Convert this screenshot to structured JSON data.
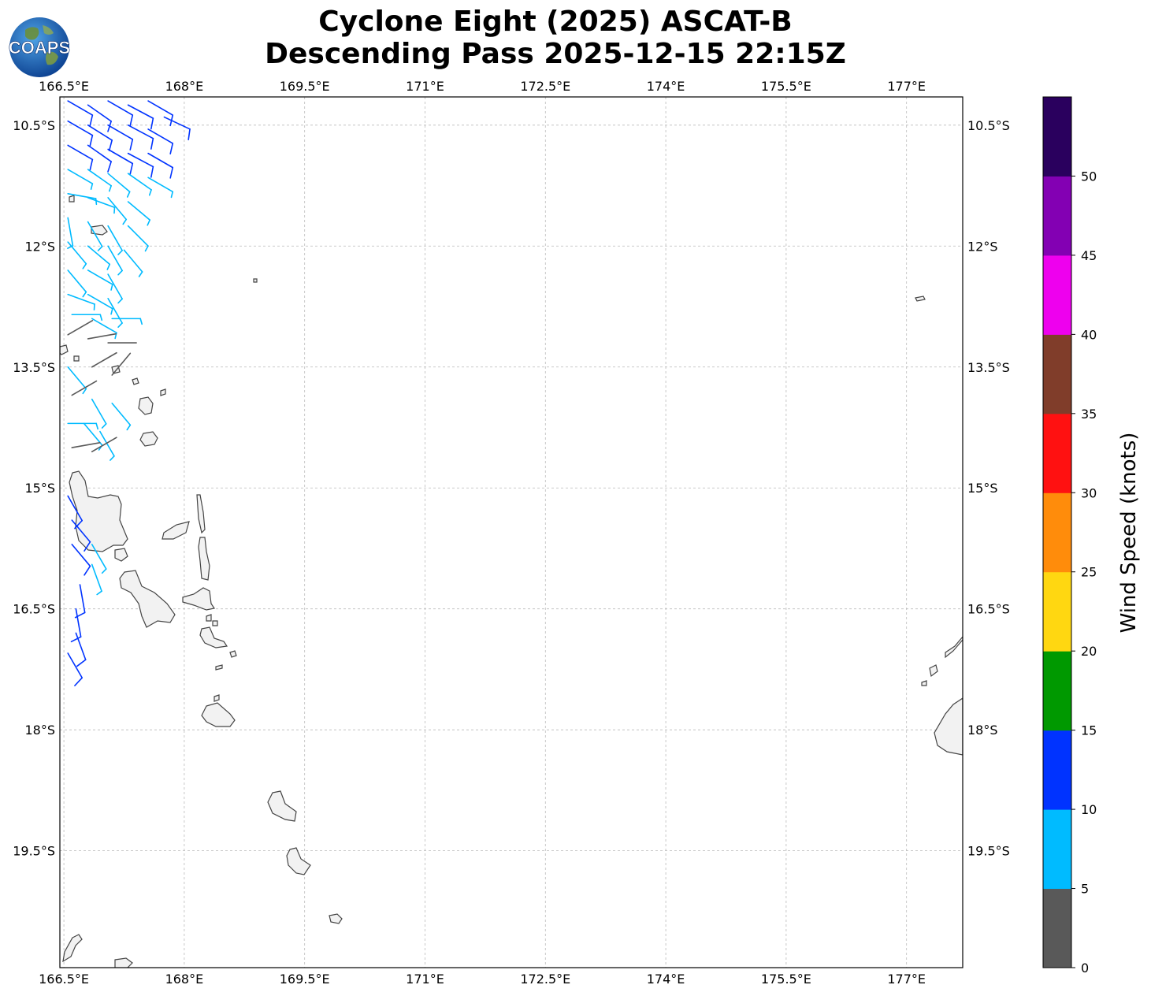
{
  "title": {
    "line1": "Cyclone Eight (2025) ASCAT-B",
    "line2": "Descending Pass 2025-12-15 22:15Z"
  },
  "logo": {
    "text": "COAPS",
    "icon": "globe-logo-icon"
  },
  "map": {
    "lon_range": [
      166.45,
      177.7
    ],
    "lat_range": [
      -20.95,
      -10.15
    ],
    "lon_ticks": [
      {
        "value": 166.5,
        "label": "166.5°E"
      },
      {
        "value": 168.0,
        "label": "168°E"
      },
      {
        "value": 169.5,
        "label": "169.5°E"
      },
      {
        "value": 171.0,
        "label": "171°E"
      },
      {
        "value": 172.5,
        "label": "172.5°E"
      },
      {
        "value": 174.0,
        "label": "174°E"
      },
      {
        "value": 175.5,
        "label": "175.5°E"
      },
      {
        "value": 177.0,
        "label": "177°E"
      }
    ],
    "lat_ticks": [
      {
        "value": -10.5,
        "label": "10.5°S"
      },
      {
        "value": -12.0,
        "label": "12°S"
      },
      {
        "value": -13.5,
        "label": "13.5°S"
      },
      {
        "value": -15.0,
        "label": "15°S"
      },
      {
        "value": -16.5,
        "label": "16.5°S"
      },
      {
        "value": -18.0,
        "label": "18°S"
      },
      {
        "value": -19.5,
        "label": "19.5°S"
      }
    ],
    "grid": "dashed",
    "land_color": "#f2f2f2",
    "coast_color": "#444444"
  },
  "colorbar": {
    "label": "Wind Speed (knots)",
    "bins": [
      {
        "min": 0,
        "max": 5,
        "color": "#595959"
      },
      {
        "min": 5,
        "max": 10,
        "color": "#00bbff"
      },
      {
        "min": 10,
        "max": 15,
        "color": "#0033ff"
      },
      {
        "min": 15,
        "max": 20,
        "color": "#009900"
      },
      {
        "min": 20,
        "max": 25,
        "color": "#ffd711"
      },
      {
        "min": 25,
        "max": 30,
        "color": "#ff8c0b"
      },
      {
        "min": 30,
        "max": 35,
        "color": "#ff1111"
      },
      {
        "min": 35,
        "max": 40,
        "color": "#803d2a"
      },
      {
        "min": 40,
        "max": 45,
        "color": "#ee00ee"
      },
      {
        "min": 45,
        "max": 50,
        "color": "#8300b3"
      },
      {
        "min": 50,
        "max": 55,
        "color": "#2a005e"
      }
    ],
    "tick_labels": [
      "0",
      "5",
      "10",
      "15",
      "20",
      "25",
      "30",
      "35",
      "40",
      "45",
      "50"
    ]
  },
  "wind_barbs": [
    {
      "lon": 166.55,
      "lat": -10.2,
      "speed": 12,
      "dir": 120
    },
    {
      "lon": 166.8,
      "lat": -10.25,
      "speed": 12,
      "dir": 125
    },
    {
      "lon": 167.05,
      "lat": -10.2,
      "speed": 13,
      "dir": 120
    },
    {
      "lon": 167.3,
      "lat": -10.25,
      "speed": 12,
      "dir": 118
    },
    {
      "lon": 167.55,
      "lat": -10.2,
      "speed": 13,
      "dir": 120
    },
    {
      "lon": 167.75,
      "lat": -10.4,
      "speed": 12,
      "dir": 115
    },
    {
      "lon": 166.55,
      "lat": -10.45,
      "speed": 12,
      "dir": 120
    },
    {
      "lon": 166.8,
      "lat": -10.5,
      "speed": 12,
      "dir": 122
    },
    {
      "lon": 167.05,
      "lat": -10.5,
      "speed": 11,
      "dir": 120
    },
    {
      "lon": 167.3,
      "lat": -10.5,
      "speed": 12,
      "dir": 118
    },
    {
      "lon": 167.55,
      "lat": -10.55,
      "speed": 12,
      "dir": 120
    },
    {
      "lon": 166.55,
      "lat": -10.75,
      "speed": 11,
      "dir": 120
    },
    {
      "lon": 166.8,
      "lat": -10.75,
      "speed": 11,
      "dir": 125
    },
    {
      "lon": 167.05,
      "lat": -10.8,
      "speed": 11,
      "dir": 120
    },
    {
      "lon": 167.3,
      "lat": -10.85,
      "speed": 11,
      "dir": 118
    },
    {
      "lon": 167.55,
      "lat": -10.85,
      "speed": 11,
      "dir": 120
    },
    {
      "lon": 166.55,
      "lat": -11.05,
      "speed": 8,
      "dir": 120
    },
    {
      "lon": 166.8,
      "lat": -11.05,
      "speed": 8,
      "dir": 125
    },
    {
      "lon": 167.05,
      "lat": -11.1,
      "speed": 8,
      "dir": 130
    },
    {
      "lon": 167.3,
      "lat": -11.1,
      "speed": 8,
      "dir": 125
    },
    {
      "lon": 167.55,
      "lat": -11.15,
      "speed": 8,
      "dir": 120
    },
    {
      "lon": 166.55,
      "lat": -11.35,
      "speed": 8,
      "dir": 100
    },
    {
      "lon": 166.8,
      "lat": -11.4,
      "speed": 8,
      "dir": 110
    },
    {
      "lon": 167.05,
      "lat": -11.4,
      "speed": 8,
      "dir": 140
    },
    {
      "lon": 167.3,
      "lat": -11.45,
      "speed": 8,
      "dir": 130
    },
    {
      "lon": 166.55,
      "lat": -11.65,
      "speed": 7,
      "dir": 170
    },
    {
      "lon": 166.8,
      "lat": -11.7,
      "speed": 7,
      "dir": 150
    },
    {
      "lon": 167.05,
      "lat": -11.75,
      "speed": 8,
      "dir": 150
    },
    {
      "lon": 167.3,
      "lat": -11.75,
      "speed": 7,
      "dir": 135
    },
    {
      "lon": 166.55,
      "lat": -11.95,
      "speed": 7,
      "dir": 140
    },
    {
      "lon": 166.8,
      "lat": -12.0,
      "speed": 7,
      "dir": 130
    },
    {
      "lon": 167.05,
      "lat": -12.0,
      "speed": 7,
      "dir": 150
    },
    {
      "lon": 167.25,
      "lat": -12.05,
      "speed": 7,
      "dir": 140
    },
    {
      "lon": 166.55,
      "lat": -12.3,
      "speed": 7,
      "dir": 140
    },
    {
      "lon": 166.8,
      "lat": -12.3,
      "speed": 7,
      "dir": 120
    },
    {
      "lon": 167.05,
      "lat": -12.35,
      "speed": 7,
      "dir": 150
    },
    {
      "lon": 166.55,
      "lat": -12.6,
      "speed": 7,
      "dir": 110
    },
    {
      "lon": 166.8,
      "lat": -12.6,
      "speed": 7,
      "dir": 120
    },
    {
      "lon": 167.05,
      "lat": -12.65,
      "speed": 7,
      "dir": 150
    },
    {
      "lon": 166.6,
      "lat": -12.85,
      "speed": 7,
      "dir": 90
    },
    {
      "lon": 166.85,
      "lat": -12.9,
      "speed": 7,
      "dir": 120
    },
    {
      "lon": 167.1,
      "lat": -12.9,
      "speed": 7,
      "dir": 90
    },
    {
      "lon": 166.55,
      "lat": -13.1,
      "speed": 4,
      "dir": 60
    },
    {
      "lon": 166.8,
      "lat": -13.15,
      "speed": 4,
      "dir": 80
    },
    {
      "lon": 167.05,
      "lat": -13.2,
      "speed": 4,
      "dir": 90
    },
    {
      "lon": 166.55,
      "lat": -13.5,
      "speed": 6,
      "dir": 140
    },
    {
      "lon": 166.85,
      "lat": -13.5,
      "speed": 4,
      "dir": 60
    },
    {
      "lon": 167.1,
      "lat": -13.6,
      "speed": 4,
      "dir": 40
    },
    {
      "lon": 166.6,
      "lat": -13.85,
      "speed": 4,
      "dir": 60
    },
    {
      "lon": 166.85,
      "lat": -13.9,
      "speed": 7,
      "dir": 150
    },
    {
      "lon": 167.1,
      "lat": -13.95,
      "speed": 6,
      "dir": 140
    },
    {
      "lon": 166.55,
      "lat": -14.2,
      "speed": 6,
      "dir": 90
    },
    {
      "lon": 166.75,
      "lat": -14.2,
      "speed": 7,
      "dir": 140
    },
    {
      "lon": 166.95,
      "lat": -14.3,
      "speed": 6,
      "dir": 150
    },
    {
      "lon": 166.6,
      "lat": -14.5,
      "speed": 4,
      "dir": 80
    },
    {
      "lon": 166.85,
      "lat": -14.55,
      "speed": 4,
      "dir": 60
    },
    {
      "lon": 166.55,
      "lat": -15.1,
      "speed": 12,
      "dir": 150
    },
    {
      "lon": 166.6,
      "lat": -15.4,
      "speed": 12,
      "dir": 140
    },
    {
      "lon": 166.6,
      "lat": -15.7,
      "speed": 12,
      "dir": 140
    },
    {
      "lon": 166.85,
      "lat": -15.7,
      "speed": 8,
      "dir": 150
    },
    {
      "lon": 166.85,
      "lat": -15.95,
      "speed": 8,
      "dir": 160
    },
    {
      "lon": 166.7,
      "lat": -16.2,
      "speed": 12,
      "dir": 170
    },
    {
      "lon": 166.65,
      "lat": -16.5,
      "speed": 12,
      "dir": 170
    },
    {
      "lon": 166.65,
      "lat": -16.8,
      "speed": 12,
      "dir": 160
    },
    {
      "lon": 166.55,
      "lat": -17.05,
      "speed": 12,
      "dir": 150
    }
  ]
}
